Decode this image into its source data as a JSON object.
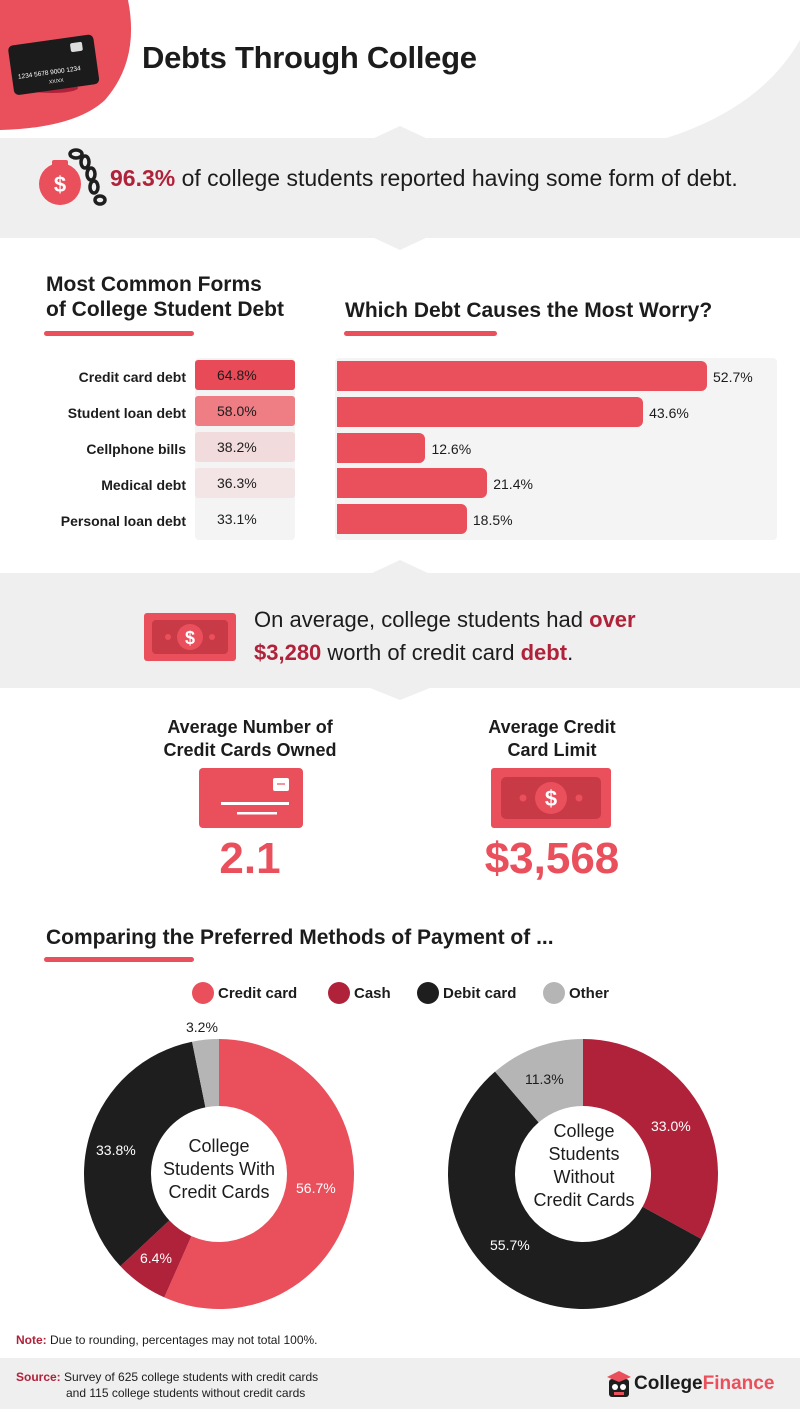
{
  "header": {
    "title": "Debts Through College",
    "card_number": "1234 5678 9000 1234",
    "card_expiry": "XX/XX"
  },
  "debt_stat": {
    "value": "96.3%",
    "text": " of college students reported having some form of debt."
  },
  "forms_section": {
    "title_line1": "Most Common Forms",
    "title_line2": "of College Student Debt",
    "rows": [
      {
        "label": "Credit card debt",
        "value": "64.8%",
        "color": "#e84a57"
      },
      {
        "label": "Student loan debt",
        "value": "58.0%",
        "color": "#ee7d84"
      },
      {
        "label": "Cellphone bills",
        "value": "38.2%",
        "color": "#f2dbdc"
      },
      {
        "label": "Medical debt",
        "value": "36.3%",
        "color": "#f3e4e5"
      },
      {
        "label": "Personal loan debt",
        "value": "33.1%",
        "color": "#f4f4f4"
      }
    ]
  },
  "worry_section": {
    "title": "Which Debt Causes the Most Worry?",
    "bars": [
      {
        "value": 52.7,
        "label": "52.7%"
      },
      {
        "value": 43.6,
        "label": "43.6%"
      },
      {
        "value": 12.6,
        "label": "12.6%"
      },
      {
        "value": 21.4,
        "label": "21.4%"
      },
      {
        "value": 18.5,
        "label": "18.5%"
      }
    ]
  },
  "avg_debt": {
    "line1_pre": "On average, college students had ",
    "line1_bold": "over",
    "line2_bold": "$3,280",
    "line2_mid": " worth of credit card ",
    "line2_bold2": "debt",
    "line2_end": "."
  },
  "stats": [
    {
      "title_line1": "Average Number of",
      "title_line2": "Credit Cards Owned",
      "value": "2.1"
    },
    {
      "title_line1": "Average Credit",
      "title_line2": "Card Limit",
      "value": "$3,568"
    }
  ],
  "payment_section": {
    "title": "Comparing the Preferred Methods of Payment of ..."
  },
  "legend": [
    {
      "label": "Credit card",
      "color": "#ea4f5c"
    },
    {
      "label": "Cash",
      "color": "#b0223a"
    },
    {
      "label": "Debit card",
      "color": "#1e1e1e"
    },
    {
      "label": "Other",
      "color": "#b5b5b5"
    }
  ],
  "chart_data": [
    {
      "type": "bar",
      "title": "Which Debt Causes the Most Worry?",
      "categories": [
        "Credit card debt",
        "Student loan debt",
        "Cellphone bills",
        "Medical debt",
        "Personal loan debt"
      ],
      "values": [
        52.7,
        43.6,
        12.6,
        21.4,
        18.5
      ]
    },
    {
      "type": "pie",
      "title": "College Students With Credit Cards",
      "center_lines": [
        "College",
        "Students With",
        "Credit Cards"
      ],
      "slices": [
        {
          "name": "Credit card",
          "value": 56.7,
          "label": "56.7%"
        },
        {
          "name": "Cash",
          "value": 6.4,
          "label": "6.4%"
        },
        {
          "name": "Debit card",
          "value": 33.8,
          "label": "33.8%"
        },
        {
          "name": "Other",
          "value": 3.2,
          "label": "3.2%"
        }
      ]
    },
    {
      "type": "pie",
      "title": "College Students Without Credit Cards",
      "center_lines": [
        "College",
        "Students",
        "Without",
        "Credit Cards"
      ],
      "slices": [
        {
          "name": "Cash",
          "value": 33.0,
          "label": "33.0%"
        },
        {
          "name": "Debit card",
          "value": 55.7,
          "label": "55.7%"
        },
        {
          "name": "Other",
          "value": 11.3,
          "label": "11.3%"
        }
      ]
    }
  ],
  "footer": {
    "note_label": "Note:",
    "note_text": " Due to rounding, percentages may not total 100%.",
    "source_label": "Source:",
    "source_line1": "Survey of 625 college students with credit cards",
    "source_line2": "and 115 college students without credit cards",
    "brand_part1": "College",
    "brand_part2": "Finance"
  }
}
